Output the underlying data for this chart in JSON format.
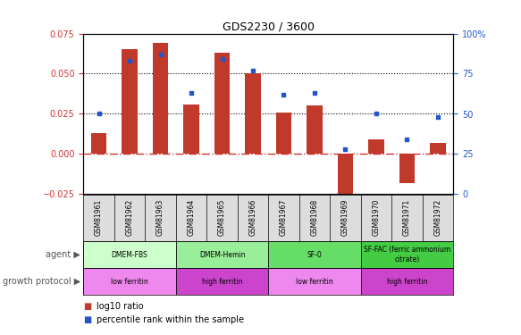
{
  "title": "GDS2230 / 3600",
  "samples": [
    "GSM81961",
    "GSM81962",
    "GSM81963",
    "GSM81964",
    "GSM81965",
    "GSM81966",
    "GSM81967",
    "GSM81968",
    "GSM81969",
    "GSM81970",
    "GSM81971",
    "GSM81972"
  ],
  "log10_ratio": [
    0.013,
    0.065,
    0.069,
    0.031,
    0.063,
    0.05,
    0.026,
    0.03,
    -0.03,
    0.009,
    -0.018,
    0.007
  ],
  "percentile_rank": [
    0.5,
    0.83,
    0.87,
    0.63,
    0.84,
    0.77,
    0.62,
    0.63,
    0.28,
    0.5,
    0.34,
    0.48
  ],
  "ylim_left": [
    -0.025,
    0.075
  ],
  "ylim_right": [
    0,
    100
  ],
  "yticks_left": [
    -0.025,
    0,
    0.025,
    0.05,
    0.075
  ],
  "yticks_right": [
    0,
    25,
    50,
    75,
    100
  ],
  "hlines": [
    0.025,
    0.05
  ],
  "bar_color": "#C0392B",
  "dot_color": "#2255CC",
  "zero_line_color": "#CC3333",
  "agent_groups": [
    {
      "label": "DMEM-FBS",
      "start": 0,
      "end": 3,
      "color": "#CCFFCC"
    },
    {
      "label": "DMEM-Hemin",
      "start": 3,
      "end": 6,
      "color": "#99EE99"
    },
    {
      "label": "SF-0",
      "start": 6,
      "end": 9,
      "color": "#66DD66"
    },
    {
      "label": "SF-FAC (ferric ammonium\ncitrate)",
      "start": 9,
      "end": 12,
      "color": "#44CC44"
    }
  ],
  "protocol_groups": [
    {
      "label": "low ferritin",
      "start": 0,
      "end": 3,
      "color": "#EE88EE"
    },
    {
      "label": "high ferritin",
      "start": 3,
      "end": 6,
      "color": "#CC44CC"
    },
    {
      "label": "low ferritin",
      "start": 6,
      "end": 9,
      "color": "#EE88EE"
    },
    {
      "label": "high ferritin",
      "start": 9,
      "end": 12,
      "color": "#CC44CC"
    }
  ],
  "agent_label": "agent",
  "protocol_label": "growth protocol",
  "legend_bar_label": "log10 ratio",
  "legend_dot_label": "percentile rank within the sample",
  "bg_color": "#FFFFFF",
  "tick_label_color_left": "#CC3333",
  "tick_label_color_right": "#2255CC",
  "sample_label_bg": "#DDDDDD"
}
